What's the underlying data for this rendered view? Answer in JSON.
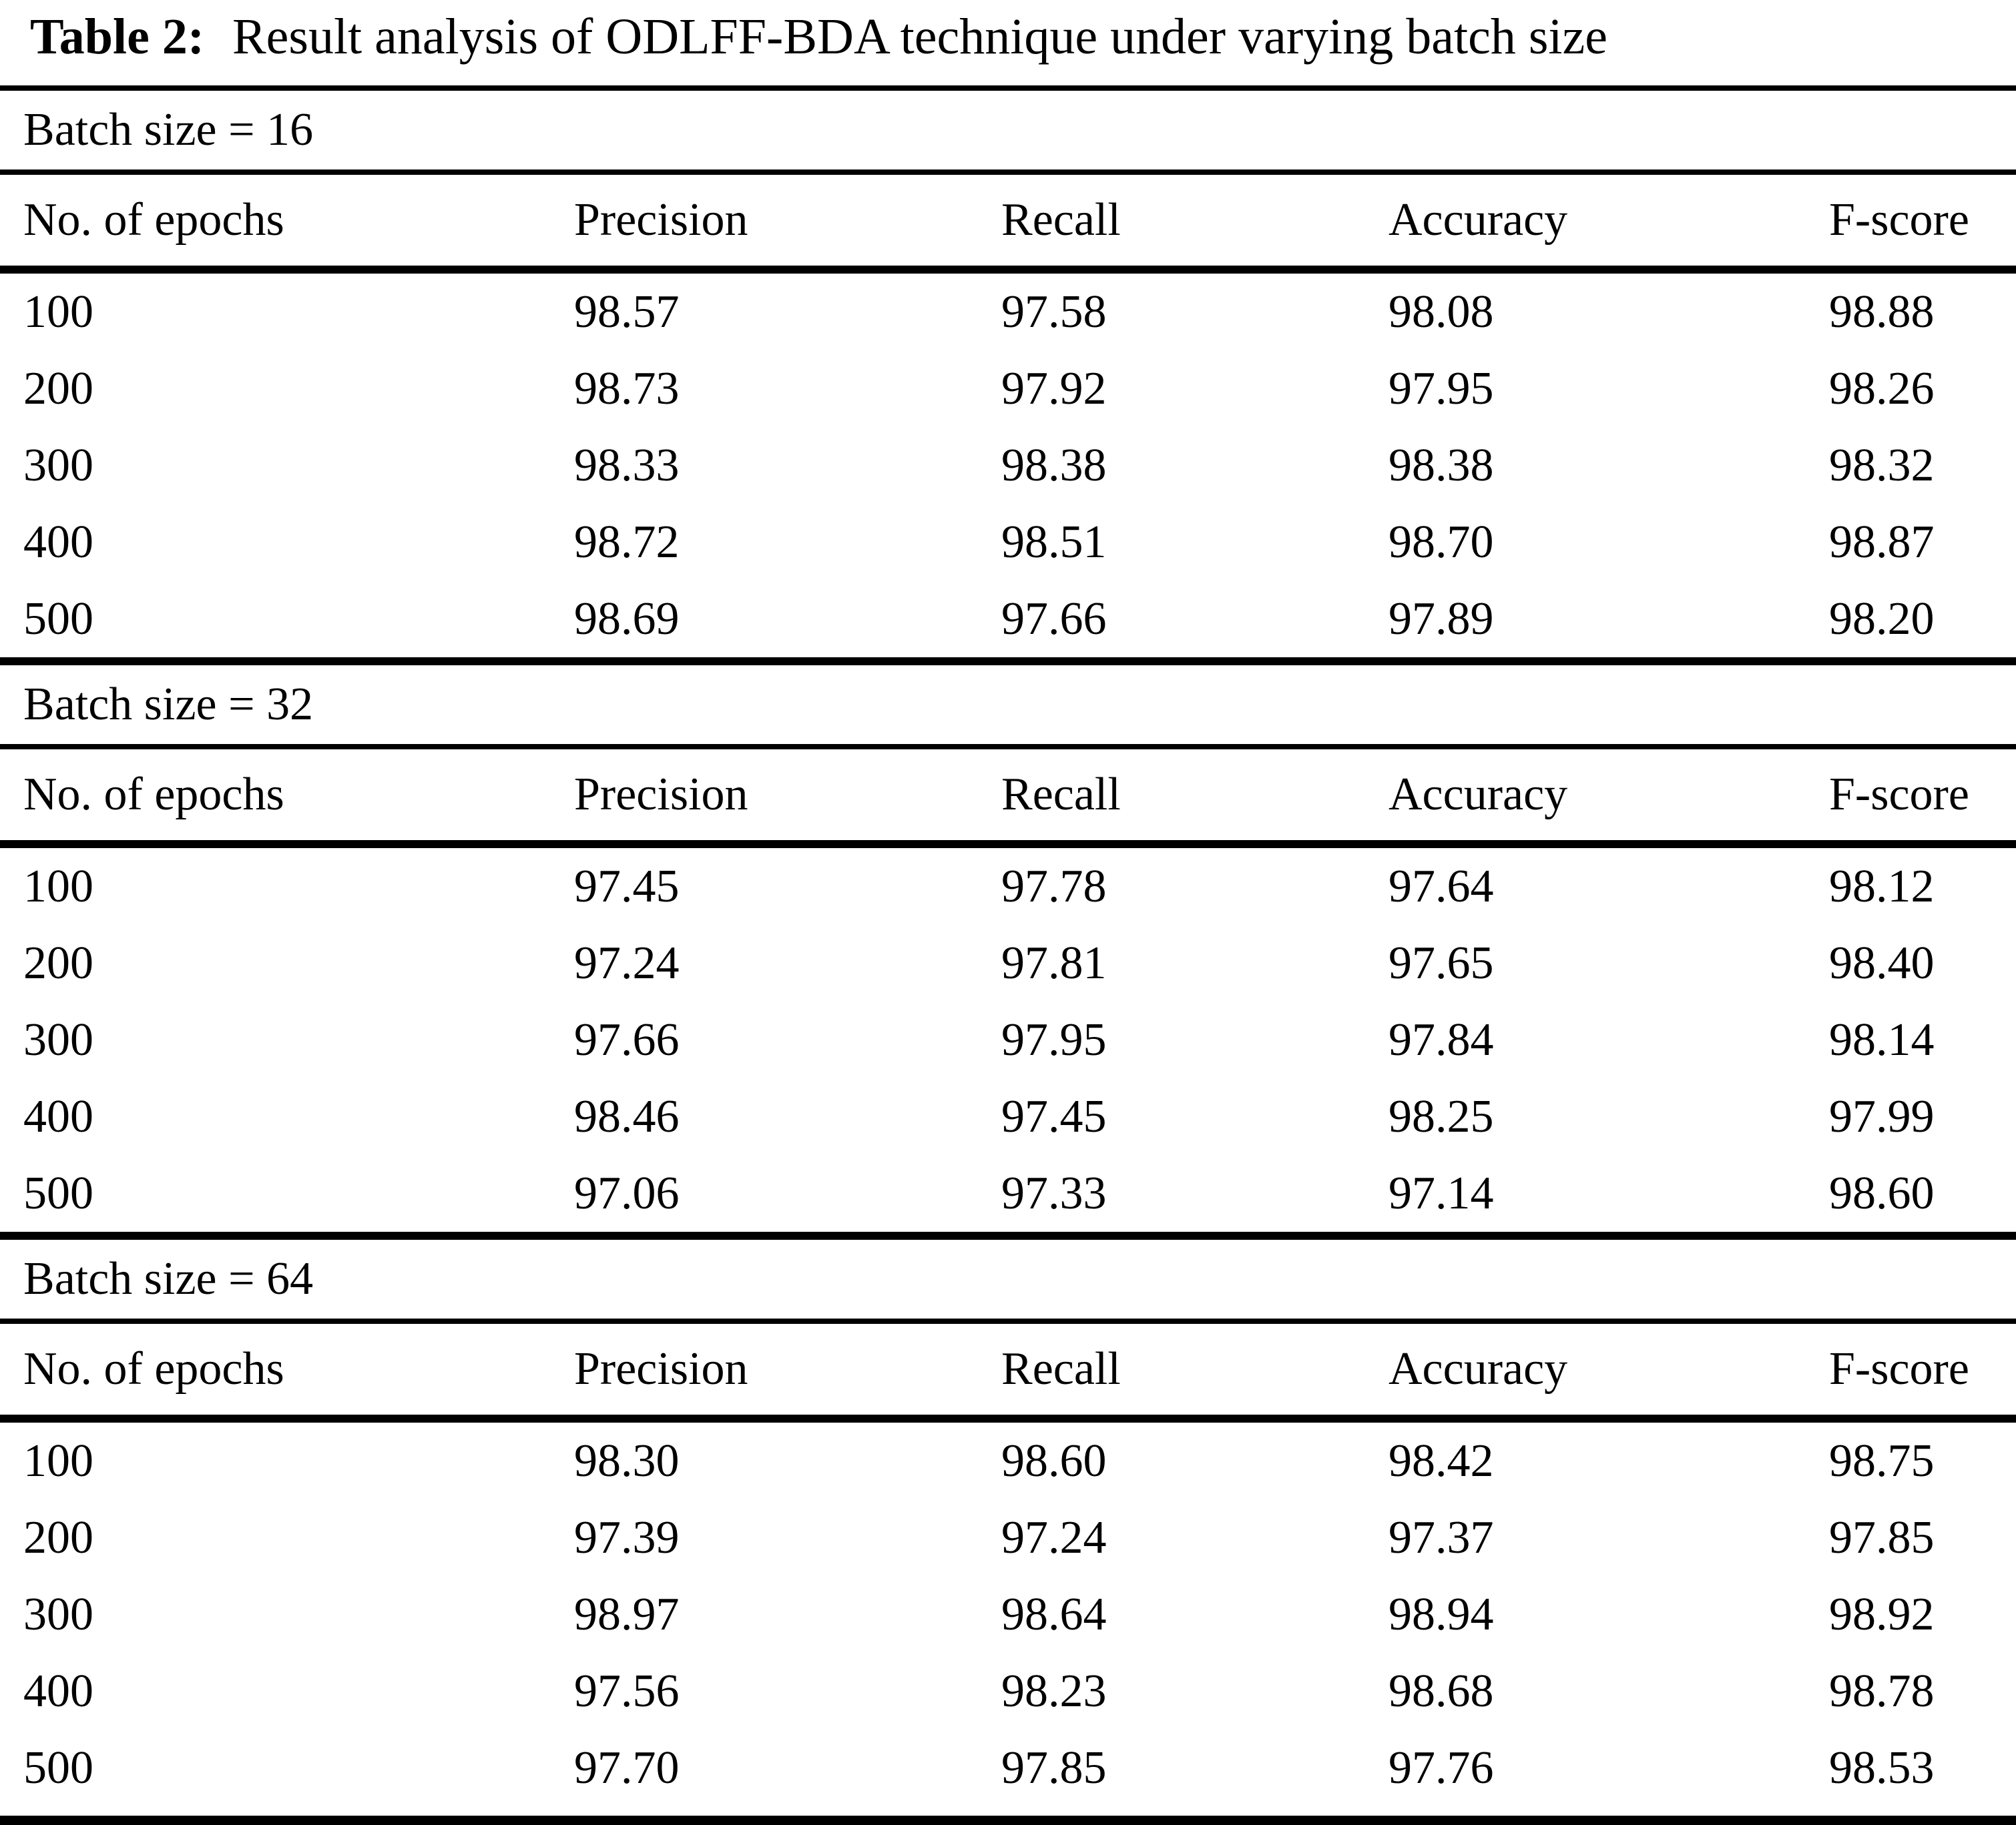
{
  "colors": {
    "text": "#000000",
    "background": "#ffffff",
    "rule": "#000000"
  },
  "title": {
    "label": "Table 2:",
    "text": "Result analysis of ODLFF-BDA technique under varying batch size"
  },
  "columns": [
    "No. of epochs",
    "Precision",
    "Recall",
    "Accuracy",
    "F-score"
  ],
  "sections": [
    {
      "header": "Batch size = 16",
      "rows": [
        [
          "100",
          "98.57",
          "97.58",
          "98.08",
          "98.88"
        ],
        [
          "200",
          "98.73",
          "97.92",
          "97.95",
          "98.26"
        ],
        [
          "300",
          "98.33",
          "98.38",
          "98.38",
          "98.32"
        ],
        [
          "400",
          "98.72",
          "98.51",
          "98.70",
          "98.87"
        ],
        [
          "500",
          "98.69",
          "97.66",
          "97.89",
          "98.20"
        ]
      ]
    },
    {
      "header": "Batch size = 32",
      "rows": [
        [
          "100",
          "97.45",
          "97.78",
          "97.64",
          "98.12"
        ],
        [
          "200",
          "97.24",
          "97.81",
          "97.65",
          "98.40"
        ],
        [
          "300",
          "97.66",
          "97.95",
          "97.84",
          "98.14"
        ],
        [
          "400",
          "98.46",
          "97.45",
          "98.25",
          "97.99"
        ],
        [
          "500",
          "97.06",
          "97.33",
          "97.14",
          "98.60"
        ]
      ]
    },
    {
      "header": "Batch size = 64",
      "rows": [
        [
          "100",
          "98.30",
          "98.60",
          "98.42",
          "98.75"
        ],
        [
          "200",
          "97.39",
          "97.24",
          "97.37",
          "97.85"
        ],
        [
          "300",
          "98.97",
          "98.64",
          "98.94",
          "98.92"
        ],
        [
          "400",
          "97.56",
          "98.23",
          "98.68",
          "98.78"
        ],
        [
          "500",
          "97.70",
          "97.85",
          "97.76",
          "98.53"
        ]
      ]
    }
  ]
}
